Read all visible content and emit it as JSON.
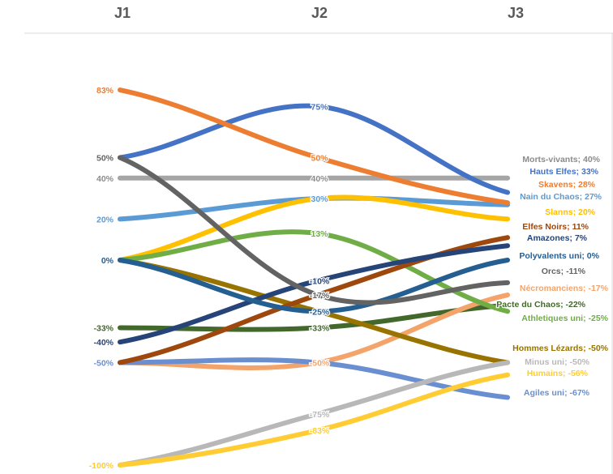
{
  "chart_data": {
    "type": "line",
    "categories": [
      "J1",
      "J2",
      "J3"
    ],
    "ylim": [
      -100,
      100
    ],
    "grid": false,
    "legend": "none",
    "series": [
      {
        "name": "Morts-vivants",
        "values": [
          40,
          40,
          40
        ],
        "color": "#A5A5A5",
        "labels": [
          "40%",
          "40%",
          "Morts-vivants; 40%"
        ]
      },
      {
        "name": "Hauts Elfes",
        "values": [
          50,
          75,
          33
        ],
        "color": "#4472C4",
        "labels": [
          "",
          "75%",
          "Hauts Elfes; 33%"
        ]
      },
      {
        "name": "Skavens",
        "values": [
          83,
          50,
          28
        ],
        "color": "#ED7D31",
        "labels": [
          "83%",
          "50%",
          "Skavens; 28%"
        ]
      },
      {
        "name": "Nain du Chaos",
        "values": [
          20,
          30,
          27
        ],
        "color": "#5B9BD5",
        "labels": [
          "20%",
          "30%",
          "Nain du Chaos; 27%"
        ]
      },
      {
        "name": "Slanns",
        "values": [
          0,
          30,
          20
        ],
        "color": "#FFC000",
        "labels": [
          "",
          "",
          "Slanns; 20%"
        ]
      },
      {
        "name": "Elfes Noirs",
        "values": [
          -50,
          -17,
          11
        ],
        "color": "#9E480E",
        "labels": [
          "",
          "",
          "Elfes Noirs; 11%"
        ]
      },
      {
        "name": "Amazones",
        "values": [
          -40,
          -10,
          7
        ],
        "color": "#264478",
        "labels": [
          "-40%",
          "-10%",
          "Amazones; 7%"
        ]
      },
      {
        "name": "Polyvalents uni",
        "values": [
          0,
          -25,
          0
        ],
        "color": "#255E91",
        "labels": [
          "0%",
          "-25%",
          "Polyvalents uni; 0%"
        ]
      },
      {
        "name": "Orcs",
        "values": [
          50,
          -17,
          -11
        ],
        "color": "#636363",
        "labels": [
          "50%",
          "-17%",
          "Orcs; -11%"
        ]
      },
      {
        "name": "Nécromanciens",
        "values": [
          -50,
          -50,
          -17
        ],
        "color": "#F4A46A",
        "labels": [
          "",
          "-50%",
          "Nécromanciens; -17%"
        ]
      },
      {
        "name": "Pacte du Chaos",
        "values": [
          -33,
          -33,
          -22
        ],
        "color": "#43682B",
        "labels": [
          "-33%",
          "-33%",
          "Pacte du Chaos; -22%"
        ]
      },
      {
        "name": "Athletiques uni",
        "values": [
          0,
          13,
          -25
        ],
        "color": "#70AD47",
        "labels": [
          "",
          "13%",
          "Athletiques uni; -25%"
        ]
      },
      {
        "name": "Hommes Lézards",
        "values": [
          0,
          -25,
          -50
        ],
        "color": "#997300",
        "labels": [
          "",
          "",
          "Hommes Lézards; -50%"
        ]
      },
      {
        "name": "Minus uni",
        "values": [
          -100,
          -75,
          -50
        ],
        "color": "#B8B8B8",
        "labels": [
          "",
          "-75%",
          "Minus uni; -50%"
        ]
      },
      {
        "name": "Humains",
        "values": [
          -100,
          -83,
          -56
        ],
        "color": "#FFCD33",
        "labels": [
          "-100%",
          "-83%",
          "Humains; -56%"
        ]
      },
      {
        "name": "Agiles uni",
        "values": [
          -50,
          -50,
          -67
        ],
        "color": "#6A8FD0",
        "labels": [
          "-50%",
          "",
          "Agiles uni; -67%"
        ]
      }
    ]
  }
}
